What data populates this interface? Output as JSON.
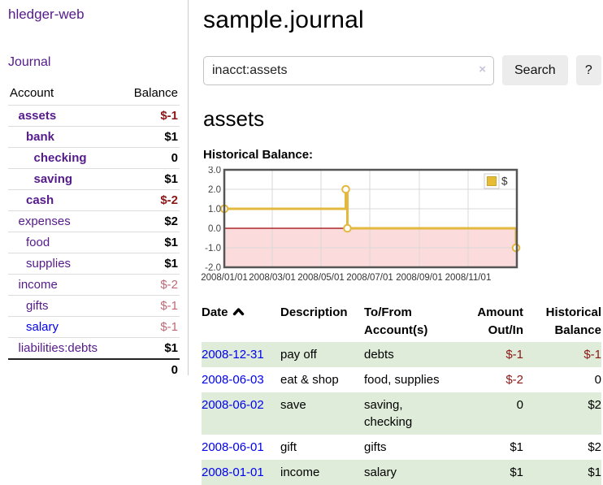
{
  "app": {
    "title": "hledger-web",
    "nav_journal": "Journal"
  },
  "sidebar": {
    "accounts_header": {
      "account": "Account",
      "balance": "Balance"
    },
    "accounts": [
      {
        "name": "assets",
        "indent": 1,
        "bold": true,
        "balance": "$-1"
      },
      {
        "name": "bank",
        "indent": 2,
        "bold": true,
        "balance": "$1"
      },
      {
        "name": "checking",
        "indent": 3,
        "bold": true,
        "balance": "0"
      },
      {
        "name": "saving",
        "indent": 3,
        "bold": true,
        "balance": "$1"
      },
      {
        "name": "cash",
        "indent": 2,
        "bold": true,
        "balance": "$-2"
      },
      {
        "name": "expenses",
        "indent": 1,
        "bold": false,
        "balance": "$2"
      },
      {
        "name": "food",
        "indent": 2,
        "bold": false,
        "balance": "$1"
      },
      {
        "name": "supplies",
        "indent": 2,
        "bold": false,
        "balance": "$1"
      },
      {
        "name": "income",
        "indent": 1,
        "bold": false,
        "balance": "$-2"
      },
      {
        "name": "gifts",
        "indent": 2,
        "bold": false,
        "balance": "$-1"
      },
      {
        "name": "salary",
        "indent": 2,
        "bold": false,
        "balance": "$-1",
        "link_blue": true
      },
      {
        "name": "liabilities:debts",
        "indent": 1,
        "bold": false,
        "balance": "$1"
      }
    ],
    "total": "0"
  },
  "main": {
    "title": "sample.journal",
    "search": {
      "value": "inacct:assets",
      "clear": "×",
      "button": "Search",
      "help": "?"
    },
    "account_heading": "assets",
    "chart_title": "Historical Balance:"
  },
  "chart_data": {
    "type": "line",
    "step": true,
    "title": "Historical Balance of assets",
    "legend": [
      {
        "label": "$",
        "color": "#e7bc35"
      }
    ],
    "legend_position": "top-right",
    "x_range": [
      "2008-01-01",
      "2009-01-01"
    ],
    "ylim": [
      -2,
      3
    ],
    "y_ticks": [
      {
        "v": 3,
        "label": "3.0"
      },
      {
        "v": 2,
        "label": "2.0"
      },
      {
        "v": 1,
        "label": "1.0"
      },
      {
        "v": 0,
        "label": "0.0"
      },
      {
        "v": -1,
        "label": "-1.0"
      },
      {
        "v": -2,
        "label": "-2.0"
      }
    ],
    "x_ticks": [
      {
        "date": "2008-01-01",
        "label": "2008/01/01"
      },
      {
        "date": "2008-03-01",
        "label": "2008/03/01"
      },
      {
        "date": "2008-05-01",
        "label": "2008/05/01"
      },
      {
        "date": "2008-07-01",
        "label": "2008/07/01"
      },
      {
        "date": "2008-09-01",
        "label": "2008/09/01"
      },
      {
        "date": "2008-11-01",
        "label": "2008/11/01"
      }
    ],
    "grid": true,
    "series": [
      {
        "name": "$",
        "points": [
          {
            "date": "2008-01-01",
            "value": 1
          },
          {
            "date": "2008-06-01",
            "value": 2
          },
          {
            "date": "2008-06-03",
            "value": 0
          },
          {
            "date": "2008-12-31",
            "value": -1
          }
        ]
      }
    ],
    "line_color": "#e3b83e",
    "marker_fill": "#ffffff",
    "zero_line_color": "#9c0006",
    "negative_region_color": "#fbdbdb",
    "border_color": "#555555",
    "gridline_color": "#d8d8d8"
  },
  "register": {
    "headers": {
      "date": "Date",
      "description": "Description",
      "accounts": "To/From Account(s)",
      "amount": "Amount Out/In",
      "balance": "Historical Balance"
    },
    "rows": [
      {
        "date": "2008-12-31",
        "description": "pay off",
        "accounts": "debts",
        "amount": "$-1",
        "balance": "$-1"
      },
      {
        "date": "2008-06-03",
        "description": "eat & shop",
        "accounts": "food, supplies",
        "amount": "$-2",
        "balance": "0"
      },
      {
        "date": "2008-06-02",
        "description": "save",
        "accounts": "saving, checking",
        "amount": "0",
        "balance": "$2"
      },
      {
        "date": "2008-06-01",
        "description": "gift",
        "accounts": "gifts",
        "amount": "$1",
        "balance": "$2"
      },
      {
        "date": "2008-01-01",
        "description": "income",
        "accounts": "salary",
        "amount": "$1",
        "balance": "$1"
      }
    ]
  },
  "colors": {
    "link_purple": "#551a8b",
    "link_blue": "#0000ee",
    "negative_strong": "#8b1717",
    "negative_soft": "#bd6a75",
    "row_stripe_green": "#dfecd9",
    "chart_line_gold": "#e3b83e"
  }
}
